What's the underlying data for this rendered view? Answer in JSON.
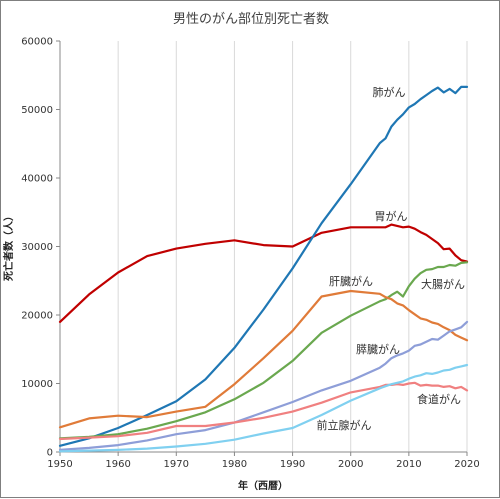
{
  "chart_data": {
    "type": "line",
    "title": "男性のがん部位別死亡者数",
    "xlabel": "年（西暦）",
    "ylabel": "死亡者数（人）",
    "xlim": [
      1950,
      2020
    ],
    "ylim": [
      0,
      60000
    ],
    "x_ticks": [
      "1950",
      "1960",
      "1970",
      "1980",
      "1990",
      "2000",
      "2010",
      "2020"
    ],
    "y_ticks": [
      "0",
      "10000",
      "20000",
      "30000",
      "40000",
      "50000",
      "60000"
    ],
    "grid": "vertical",
    "legend": "inline labels",
    "series": [
      {
        "name": "胃がん",
        "color": "#c00000",
        "x": [
          1950,
          1955,
          1960,
          1965,
          1970,
          1975,
          1980,
          1985,
          1990,
          1995,
          2000,
          2005,
          2006,
          2007,
          2008,
          2009,
          2010,
          2011,
          2012,
          2013,
          2014,
          2015,
          2016,
          2017,
          2018,
          2019,
          2020
        ],
        "y": [
          19000,
          23000,
          26200,
          28600,
          29700,
          30400,
          30900,
          30200,
          30000,
          32000,
          32800,
          32800,
          32800,
          33200,
          33000,
          32800,
          32900,
          32600,
          32100,
          31700,
          31100,
          30500,
          29600,
          29700,
          28700,
          28000,
          27800
        ]
      },
      {
        "name": "肺がん",
        "color": "#1f77b4",
        "x": [
          1950,
          1955,
          1960,
          1965,
          1970,
          1975,
          1980,
          1985,
          1990,
          1995,
          2000,
          2005,
          2006,
          2007,
          2008,
          2009,
          2010,
          2011,
          2012,
          2013,
          2014,
          2015,
          2016,
          2017,
          2018,
          2019,
          2020
        ],
        "y": [
          900,
          2000,
          3500,
          5400,
          7400,
          10600,
          15200,
          20800,
          26800,
          33400,
          39100,
          45100,
          45800,
          47500,
          48500,
          49300,
          50300,
          50800,
          51500,
          52100,
          52700,
          53200,
          52500,
          53000,
          52400,
          53300,
          53300
        ]
      },
      {
        "name": "大腸がん",
        "color": "#6aa84f",
        "x": [
          1950,
          1955,
          1960,
          1965,
          1970,
          1975,
          1980,
          1985,
          1990,
          1995,
          2000,
          2005,
          2006,
          2007,
          2008,
          2009,
          2010,
          2011,
          2012,
          2013,
          2014,
          2015,
          2016,
          2017,
          2018,
          2019,
          2020
        ],
        "y": [
          2000,
          2200,
          2600,
          3400,
          4500,
          5800,
          7700,
          10100,
          13300,
          17400,
          19900,
          22000,
          22300,
          22900,
          23400,
          22700,
          24200,
          25300,
          26100,
          26600,
          26700,
          27000,
          27000,
          27300,
          27200,
          27600,
          27700
        ]
      },
      {
        "name": "肝臓がん",
        "color": "#e07b39",
        "x": [
          1950,
          1955,
          1960,
          1965,
          1970,
          1975,
          1980,
          1985,
          1990,
          1995,
          2000,
          2005,
          2006,
          2007,
          2008,
          2009,
          2010,
          2011,
          2012,
          2013,
          2014,
          2015,
          2016,
          2017,
          2018,
          2019,
          2020
        ],
        "y": [
          3600,
          4900,
          5300,
          5100,
          5900,
          6600,
          9900,
          13700,
          17700,
          22700,
          23500,
          23100,
          22600,
          22300,
          21700,
          21400,
          20700,
          20100,
          19500,
          19300,
          18900,
          18700,
          18200,
          17800,
          17100,
          16700,
          16300
        ]
      },
      {
        "name": "膵臓がん",
        "color": "#8e9ed8",
        "x": [
          1950,
          1955,
          1960,
          1965,
          1970,
          1975,
          1980,
          1985,
          1990,
          1995,
          2000,
          2005,
          2006,
          2007,
          2008,
          2009,
          2010,
          2011,
          2012,
          2013,
          2014,
          2015,
          2016,
          2017,
          2018,
          2019,
          2020
        ],
        "y": [
          300,
          600,
          1000,
          1700,
          2600,
          3200,
          4300,
          5800,
          7300,
          9000,
          10400,
          12300,
          12900,
          13700,
          14100,
          14400,
          14800,
          15500,
          15700,
          16100,
          16500,
          16400,
          17000,
          17600,
          17900,
          18200,
          19000
        ]
      },
      {
        "name": "食道がん",
        "color": "#f08080",
        "x": [
          1950,
          1955,
          1960,
          1965,
          1970,
          1975,
          1980,
          1985,
          1990,
          1995,
          2000,
          2005,
          2006,
          2007,
          2008,
          2009,
          2010,
          2011,
          2012,
          2013,
          2014,
          2015,
          2016,
          2017,
          2018,
          2019,
          2020
        ],
        "y": [
          1900,
          2100,
          2300,
          2800,
          3800,
          3800,
          4300,
          5000,
          5900,
          7200,
          8700,
          9500,
          9800,
          9800,
          9900,
          9800,
          10000,
          10100,
          9700,
          9800,
          9700,
          9700,
          9500,
          9600,
          9300,
          9500,
          9000
        ]
      },
      {
        "name": "前立腺がん",
        "color": "#80d0f0",
        "x": [
          1950,
          1955,
          1960,
          1965,
          1970,
          1975,
          1980,
          1985,
          1990,
          1995,
          2000,
          2005,
          2006,
          2007,
          2008,
          2009,
          2010,
          2011,
          2012,
          2013,
          2014,
          2015,
          2016,
          2017,
          2018,
          2019,
          2020
        ],
        "y": [
          100,
          200,
          300,
          500,
          800,
          1200,
          1800,
          2700,
          3500,
          5400,
          7500,
          9300,
          9600,
          9900,
          10100,
          10300,
          10700,
          11000,
          11200,
          11500,
          11400,
          11600,
          11900,
          12000,
          12300,
          12500,
          12700
        ]
      }
    ]
  }
}
